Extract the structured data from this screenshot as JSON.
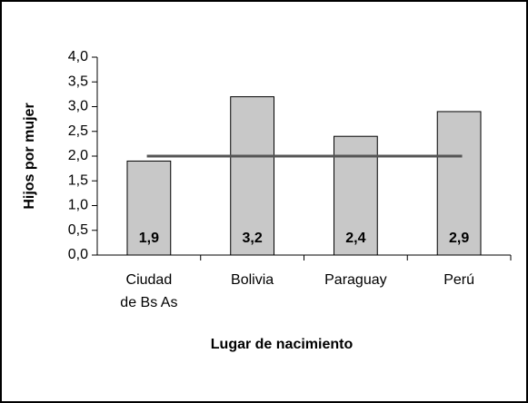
{
  "chart_data": {
    "type": "bar",
    "categories": [
      "Ciudad\nde Bs As",
      "Bolivia",
      "Paraguay",
      "Perú"
    ],
    "values": [
      1.9,
      3.2,
      2.4,
      2.9
    ],
    "value_labels": [
      "1,9",
      "3,2",
      "2,4",
      "2,9"
    ],
    "color": "#c8c8c8",
    "reference_line": 2,
    "reference_color": "#555555",
    "ylabel": "Hijos por mujer",
    "xlabel": "Lugar de nacimiento",
    "ylim": [
      0,
      4
    ],
    "yticks": [
      {
        "value": 0,
        "label": "0,0"
      },
      {
        "value": 0.5,
        "label": "0,5"
      },
      {
        "value": 1,
        "label": "1,0"
      },
      {
        "value": 1.5,
        "label": "1,5"
      },
      {
        "value": 2,
        "label": "2,0"
      },
      {
        "value": 2.5,
        "label": "2,5"
      },
      {
        "value": 3,
        "label": "3,0"
      },
      {
        "value": 3.5,
        "label": "3,5"
      },
      {
        "value": 4,
        "label": "4,0"
      }
    ],
    "grid": false
  }
}
